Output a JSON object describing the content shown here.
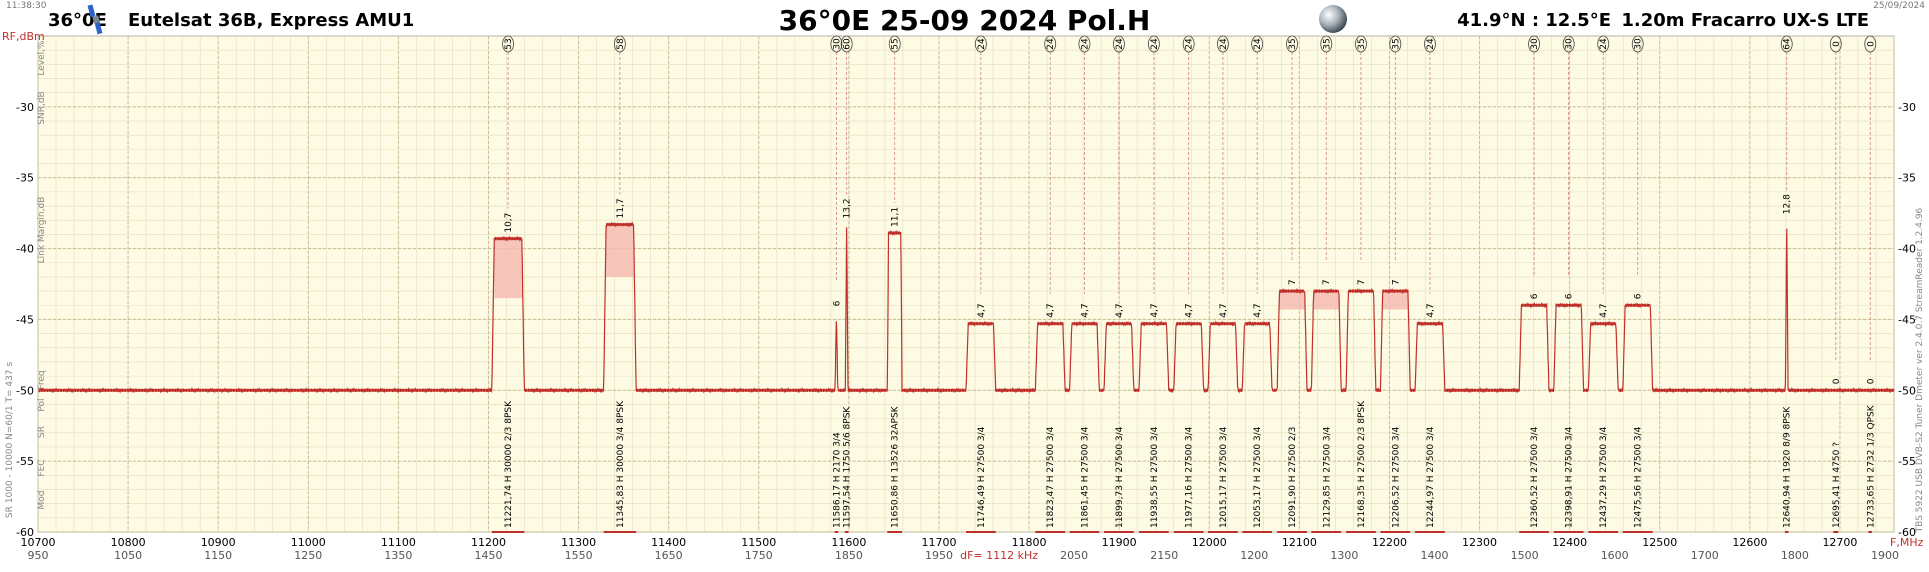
{
  "header": {
    "orbital_position": "36°0E",
    "satellite_name": "Eutelsat 36B, Express AMU1",
    "title": "36°0E 25-09 2024 Pol.H",
    "coordinates": "41.9°N : 12.5°E",
    "dish": "1.20m  Fracarro UX-S LTE",
    "time": "11:38:30",
    "date": "25/09/2024"
  },
  "colors": {
    "background": "#fdfbe4",
    "trace": "#c0302a",
    "fill": "#f6b8b0",
    "grid": "#e6dcbc",
    "axis_text": "#000000"
  },
  "chart_data": {
    "type": "line",
    "title": "36°0E 25-09 2024 Pol.H",
    "ylabel": "RF,dBm",
    "xlabel": "F,MHz",
    "xlim": [
      10700,
      12760
    ],
    "ylim": [
      -60,
      -25
    ],
    "x_ticks": [
      10700,
      10800,
      10900,
      11000,
      11100,
      11200,
      11300,
      11400,
      11500,
      11600,
      11700,
      11800,
      11900,
      12000,
      12100,
      12200,
      12300,
      12400,
      12500,
      12600,
      12700
    ],
    "if_ticks": [
      "950",
      "1050",
      "1150",
      "1250",
      "1350",
      "1450",
      "1550",
      "1650",
      "1750",
      "1850",
      "1950",
      "2050",
      "2150",
      "1200",
      "1300",
      "1400",
      "1500",
      "1600",
      "1700",
      "1800",
      "1900",
      "2000",
      "2100"
    ],
    "y_ticks": [
      -60,
      -55,
      -50,
      -45,
      -40,
      -35,
      -30
    ],
    "noise_floor": -50,
    "grid": true,
    "left_side_labels": [
      "Level,%",
      "SNR,dB",
      "Link Margin,dB",
      "Freq",
      "Pol",
      "SR",
      "FEC",
      "Mod",
      "SR 1000 - 10000 N=60/1 T= 437 s"
    ],
    "right_side_label": "TBS 5922 USB DVB-S2 Tuner  Dmeter ver 2.4.0.7  StreamReader 1.2.4.96",
    "footer_label": "dF= 1112 kHz",
    "transponders": [
      {
        "freq": 11221.74,
        "freq_label": "11221,74",
        "pol": "H",
        "sr": "30000",
        "fec": "2/3",
        "mod": "8PSK",
        "level": 53,
        "snr": "10,7",
        "peak": -39.3,
        "margin": -43.5
      },
      {
        "freq": 11345.83,
        "freq_label": "11345,83",
        "pol": "H",
        "sr": "30000",
        "fec": "3/4",
        "mod": "8PSK",
        "level": 58,
        "snr": "11,7",
        "peak": -38.3,
        "margin": -42.0
      },
      {
        "freq": 11586.17,
        "freq_label": "11586,17",
        "pol": "H",
        "sr": "2170",
        "fec": "3/4",
        "mod": "",
        "level": 30,
        "snr": "6",
        "peak": -44.5,
        "margin": null
      },
      {
        "freq": 11597.54,
        "freq_label": "11597,54",
        "pol": "H",
        "sr": "1750",
        "fec": "5/6",
        "mod": "8PSK",
        "level": 60,
        "snr": "13,2",
        "peak": -38.3,
        "margin": null
      },
      {
        "freq": 11650.86,
        "freq_label": "11650,86",
        "pol": "H",
        "sr": "13526",
        "fec": "",
        "mod": "32APSK",
        "level": 55,
        "snr": "11,1",
        "peak": -38.9,
        "margin": null
      },
      {
        "freq": 11746.49,
        "freq_label": "11746,49",
        "pol": "H",
        "sr": "27500",
        "fec": "3/4",
        "mod": "",
        "level": 24,
        "snr": "4,7",
        "peak": -45.3,
        "margin": null
      },
      {
        "freq": 11823.47,
        "freq_label": "11823,47",
        "pol": "H",
        "sr": "27500",
        "fec": "3/4",
        "mod": "",
        "level": 24,
        "snr": "4,7",
        "peak": -45.3,
        "margin": null
      },
      {
        "freq": 11861.45,
        "freq_label": "11861,45",
        "pol": "H",
        "sr": "27500",
        "fec": "3/4",
        "mod": "",
        "level": 24,
        "snr": "4,7",
        "peak": -45.3,
        "margin": null
      },
      {
        "freq": 11899.73,
        "freq_label": "11899,73",
        "pol": "H",
        "sr": "27500",
        "fec": "3/4",
        "mod": "",
        "level": 24,
        "snr": "4,7",
        "peak": -45.3,
        "margin": null
      },
      {
        "freq": 11938.55,
        "freq_label": "11938,55",
        "pol": "H",
        "sr": "27500",
        "fec": "3/4",
        "mod": "",
        "level": 24,
        "snr": "4,7",
        "peak": -45.3,
        "margin": null
      },
      {
        "freq": 11977.16,
        "freq_label": "11977,16",
        "pol": "H",
        "sr": "27500",
        "fec": "3/4",
        "mod": "",
        "level": 24,
        "snr": "4,7",
        "peak": -45.3,
        "margin": null
      },
      {
        "freq": 12015.17,
        "freq_label": "12015,17",
        "pol": "H",
        "sr": "27500",
        "fec": "3/4",
        "mod": "",
        "level": 24,
        "snr": "4,7",
        "peak": -45.3,
        "margin": null
      },
      {
        "freq": 12053.17,
        "freq_label": "12053,17",
        "pol": "H",
        "sr": "27500",
        "fec": "3/4",
        "mod": "",
        "level": 24,
        "snr": "4,7",
        "peak": -45.3,
        "margin": null
      },
      {
        "freq": 12091.9,
        "freq_label": "12091,90",
        "pol": "H",
        "sr": "27500",
        "fec": "2/3",
        "mod": "",
        "level": 35,
        "snr": "7",
        "peak": -43.0,
        "margin": -44.3
      },
      {
        "freq": 12129.85,
        "freq_label": "12129,85",
        "pol": "H",
        "sr": "27500",
        "fec": "3/4",
        "mod": "",
        "level": 35,
        "snr": "7",
        "peak": -43.0,
        "margin": -44.3
      },
      {
        "freq": 12168.35,
        "freq_label": "12168,35",
        "pol": "H",
        "sr": "27500",
        "fec": "2/3",
        "mod": "8PSK",
        "level": 35,
        "snr": "7",
        "peak": -43.0,
        "margin": null
      },
      {
        "freq": 12206.52,
        "freq_label": "12206,52",
        "pol": "H",
        "sr": "27500",
        "fec": "3/4",
        "mod": "",
        "level": 35,
        "snr": "7",
        "peak": -43.0,
        "margin": -44.3
      },
      {
        "freq": 12244.97,
        "freq_label": "12244,97",
        "pol": "H",
        "sr": "27500",
        "fec": "3/4",
        "mod": "",
        "level": 24,
        "snr": "4,7",
        "peak": -45.3,
        "margin": null
      },
      {
        "freq": 12360.52,
        "freq_label": "12360,52",
        "pol": "H",
        "sr": "27500",
        "fec": "3/4",
        "mod": "",
        "level": 30,
        "snr": "6",
        "peak": -44.0,
        "margin": null
      },
      {
        "freq": 12398.91,
        "freq_label": "12398,91",
        "pol": "H",
        "sr": "27500",
        "fec": "3/4",
        "mod": "",
        "level": 30,
        "snr": "6",
        "peak": -44.0,
        "margin": null
      },
      {
        "freq": 12437.29,
        "freq_label": "12437,29",
        "pol": "H",
        "sr": "27500",
        "fec": "3/4",
        "mod": "",
        "level": 24,
        "snr": "4,7",
        "peak": -45.3,
        "margin": null
      },
      {
        "freq": 12475.56,
        "freq_label": "12475,56",
        "pol": "H",
        "sr": "27500",
        "fec": "3/4",
        "mod": "",
        "level": 30,
        "snr": "6",
        "peak": -44.0,
        "margin": null
      },
      {
        "freq": 12640.94,
        "freq_label": "12640,94",
        "pol": "H",
        "sr": "1920",
        "fec": "8/9",
        "mod": "8PSK",
        "level": 64,
        "snr": "12,8",
        "peak": -38.0,
        "margin": null
      },
      {
        "freq": 12695.41,
        "freq_label": "12695,41",
        "pol": "H",
        "sr": "4750",
        "fec": "?",
        "mod": "",
        "level": 0,
        "snr": "0",
        "peak": -50.0,
        "margin": null
      },
      {
        "freq": 12733.65,
        "freq_label": "12733,65",
        "pol": "H",
        "sr": "2732",
        "fec": "1/3",
        "mod": "QPSK",
        "level": 0,
        "snr": "0",
        "peak": -50.0,
        "margin": null
      }
    ]
  }
}
